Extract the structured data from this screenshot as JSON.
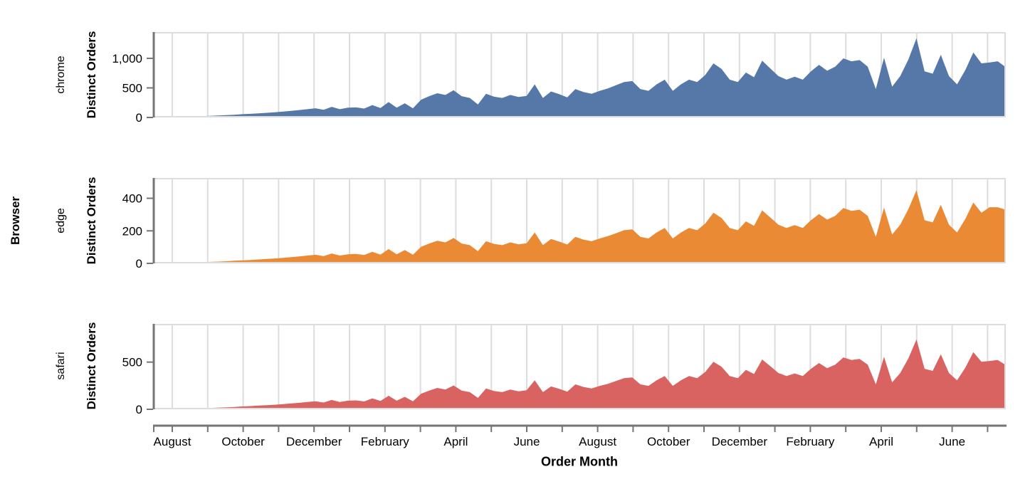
{
  "chart_data": {
    "type": "area",
    "row_header": "Browser",
    "y_axis_title": "Distinct Orders",
    "x_axis": {
      "title": "Order Month",
      "tick_labels": [
        "August",
        "",
        "October",
        "",
        "December",
        "",
        "February",
        "",
        "April",
        "",
        "June",
        "",
        "August",
        "",
        "October",
        "",
        "December",
        "",
        "February",
        "",
        "April",
        "",
        "June",
        ""
      ]
    },
    "grid": true,
    "legend": "none",
    "facets": [
      {
        "label": "chrome",
        "color": "#5578a8",
        "y_max": 1445,
        "y_ticks": [
          {
            "value": 0,
            "label": "0"
          },
          {
            "value": 500,
            "label": "500"
          },
          {
            "value": 1000,
            "label": "1,000"
          }
        ],
        "values": [
          8,
          10,
          12,
          14,
          16,
          18,
          22,
          26,
          32,
          38,
          46,
          55,
          62,
          70,
          78,
          88,
          100,
          112,
          125,
          140,
          155,
          130,
          180,
          140,
          165,
          170,
          150,
          210,
          160,
          260,
          165,
          240,
          155,
          300,
          360,
          410,
          380,
          460,
          360,
          330,
          220,
          400,
          350,
          330,
          380,
          345,
          365,
          560,
          330,
          440,
          395,
          340,
          480,
          430,
          400,
          450,
          490,
          545,
          600,
          615,
          480,
          450,
          560,
          640,
          450,
          560,
          640,
          600,
          720,
          915,
          820,
          640,
          600,
          760,
          680,
          960,
          830,
          700,
          640,
          690,
          640,
          780,
          890,
          790,
          860,
          1000,
          950,
          970,
          860,
          480,
          1010,
          520,
          700,
          980,
          1340,
          780,
          740,
          1060,
          700,
          560,
          800,
          1100,
          915,
          930,
          950,
          850
        ]
      },
      {
        "label": "edge",
        "color": "#ea8a35",
        "y_max": 525,
        "y_ticks": [
          {
            "value": 0,
            "label": "0"
          },
          {
            "value": 200,
            "label": "200"
          },
          {
            "value": 400,
            "label": "400"
          }
        ],
        "values": [
          3,
          3,
          4,
          5,
          5,
          6,
          7,
          9,
          11,
          13,
          16,
          19,
          21,
          24,
          27,
          30,
          34,
          38,
          43,
          48,
          53,
          44,
          61,
          48,
          56,
          58,
          51,
          71,
          54,
          88,
          56,
          82,
          53,
          102,
          122,
          139,
          129,
          156,
          122,
          112,
          75,
          136,
          119,
          112,
          129,
          117,
          124,
          190,
          112,
          150,
          134,
          116,
          163,
          146,
          136,
          153,
          167,
          185,
          204,
          209,
          163,
          153,
          190,
          218,
          153,
          190,
          218,
          204,
          245,
          311,
          279,
          218,
          204,
          258,
          231,
          326,
          282,
          238,
          218,
          235,
          218,
          265,
          303,
          269,
          292,
          340,
          323,
          330,
          292,
          163,
          343,
          177,
          238,
          333,
          450,
          265,
          252,
          360,
          238,
          190,
          272,
          374,
          311,
          345,
          345,
          330
        ]
      },
      {
        "label": "safari",
        "color": "#d96360",
        "y_max": 905,
        "y_ticks": [
          {
            "value": 0,
            "label": "0"
          },
          {
            "value": 500,
            "label": "500"
          }
        ],
        "values": [
          4,
          6,
          7,
          8,
          9,
          10,
          12,
          14,
          18,
          21,
          25,
          30,
          34,
          39,
          43,
          48,
          55,
          62,
          69,
          77,
          85,
          72,
          99,
          77,
          91,
          94,
          83,
          116,
          88,
          143,
          91,
          132,
          85,
          165,
          198,
          226,
          209,
          253,
          198,
          182,
          121,
          220,
          193,
          182,
          209,
          190,
          201,
          308,
          182,
          242,
          217,
          187,
          264,
          237,
          220,
          248,
          270,
          300,
          330,
          338,
          264,
          248,
          308,
          352,
          248,
          308,
          352,
          330,
          396,
          503,
          451,
          352,
          330,
          418,
          374,
          528,
          457,
          385,
          352,
          380,
          352,
          429,
          490,
          435,
          473,
          550,
          523,
          534,
          473,
          264,
          556,
          286,
          385,
          539,
          740,
          429,
          407,
          583,
          385,
          308,
          440,
          605,
          503,
          512,
          523,
          468
        ]
      }
    ]
  }
}
